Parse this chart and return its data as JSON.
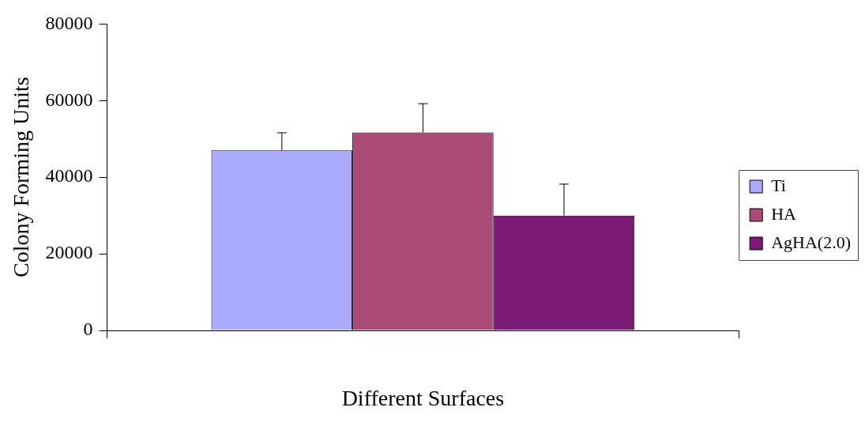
{
  "chart_data": {
    "type": "bar",
    "xlabel": "Different Surfaces",
    "ylabel": "Colony Forming Units",
    "categories": [
      null
    ],
    "series": [
      {
        "name": "Ti",
        "color": "#aaaaff",
        "values": [
          47000
        ],
        "errors": [
          [
            47000,
            51600
          ]
        ]
      },
      {
        "name": "HA",
        "color": "#aa4a77",
        "values": [
          51700
        ],
        "errors": [
          [
            51700,
            59200
          ]
        ]
      },
      {
        "name": "AgHA(2.0)",
        "color": "#7b1a77",
        "values": [
          30000
        ],
        "errors": [
          [
            30000,
            38200
          ]
        ]
      }
    ],
    "ylim": [
      0,
      80000
    ],
    "yticks": [
      0,
      20000,
      40000,
      60000,
      80000
    ],
    "grid": false,
    "legend": "right"
  }
}
